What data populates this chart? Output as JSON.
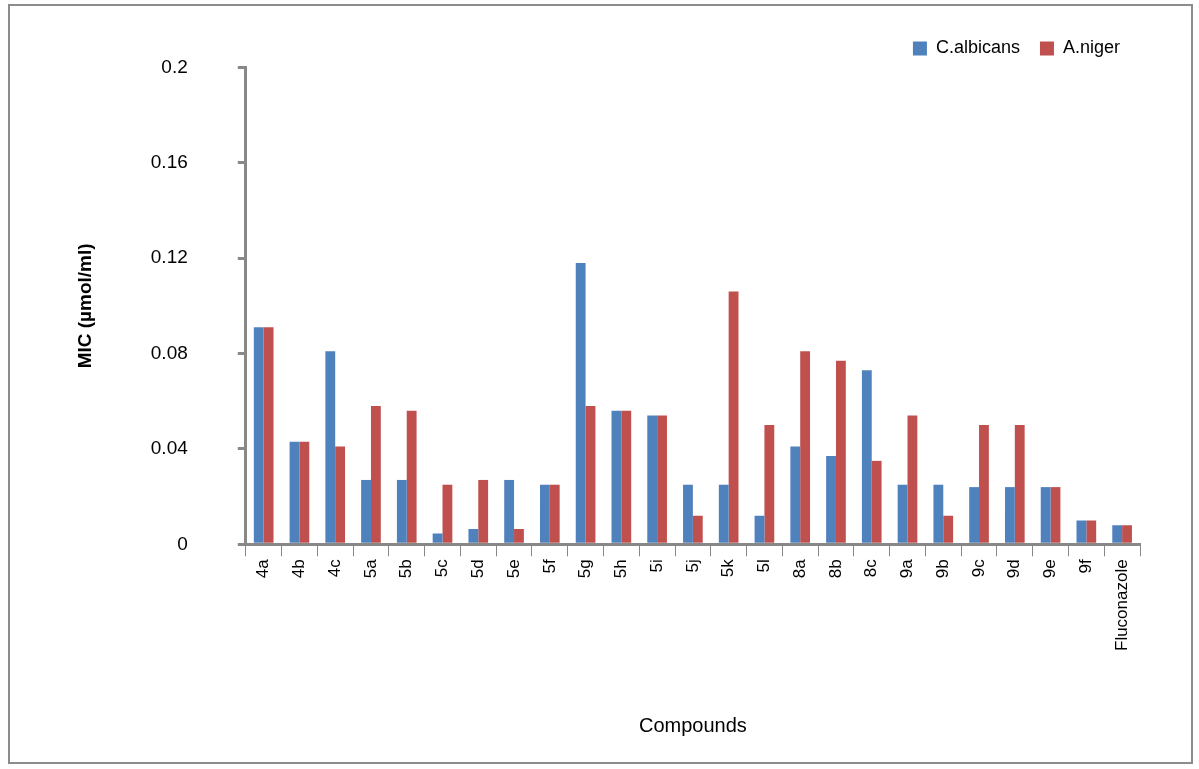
{
  "chart_data": {
    "type": "bar",
    "xlabel": "Compounds",
    "ylabel": "MIC (µmol/ml)",
    "categories": [
      "4a",
      "4b",
      "4c",
      "5a",
      "5b",
      "5c",
      "5d",
      "5e",
      "5f",
      "5g",
      "5h",
      "5i",
      "5j",
      "5k",
      "5l",
      "8a",
      "8b",
      "8c",
      "9a",
      "9b",
      "9c",
      "9d",
      "9e",
      "9f",
      "Fluconazole"
    ],
    "series": [
      {
        "name": "C.albicans",
        "color": "#4f81bd",
        "values": [
          0.091,
          0.043,
          0.081,
          0.027,
          0.027,
          0.0045,
          0.0064,
          0.027,
          0.025,
          0.118,
          0.056,
          0.054,
          0.025,
          0.025,
          0.012,
          0.041,
          0.037,
          0.073,
          0.025,
          0.025,
          0.024,
          0.024,
          0.024,
          0.01,
          0.008
        ]
      },
      {
        "name": "A.niger",
        "color": "#c0504d",
        "values": [
          0.091,
          0.043,
          0.041,
          0.058,
          0.056,
          0.025,
          0.027,
          0.0064,
          0.025,
          0.058,
          0.056,
          0.054,
          0.012,
          0.106,
          0.05,
          0.081,
          0.077,
          0.035,
          0.054,
          0.012,
          0.05,
          0.05,
          0.024,
          0.01,
          0.008
        ]
      }
    ],
    "ylim": [
      0,
      0.2
    ],
    "yticks": [
      0,
      0.04,
      0.08,
      0.12,
      0.16,
      0.2
    ],
    "grid": false,
    "legend": "top right"
  }
}
